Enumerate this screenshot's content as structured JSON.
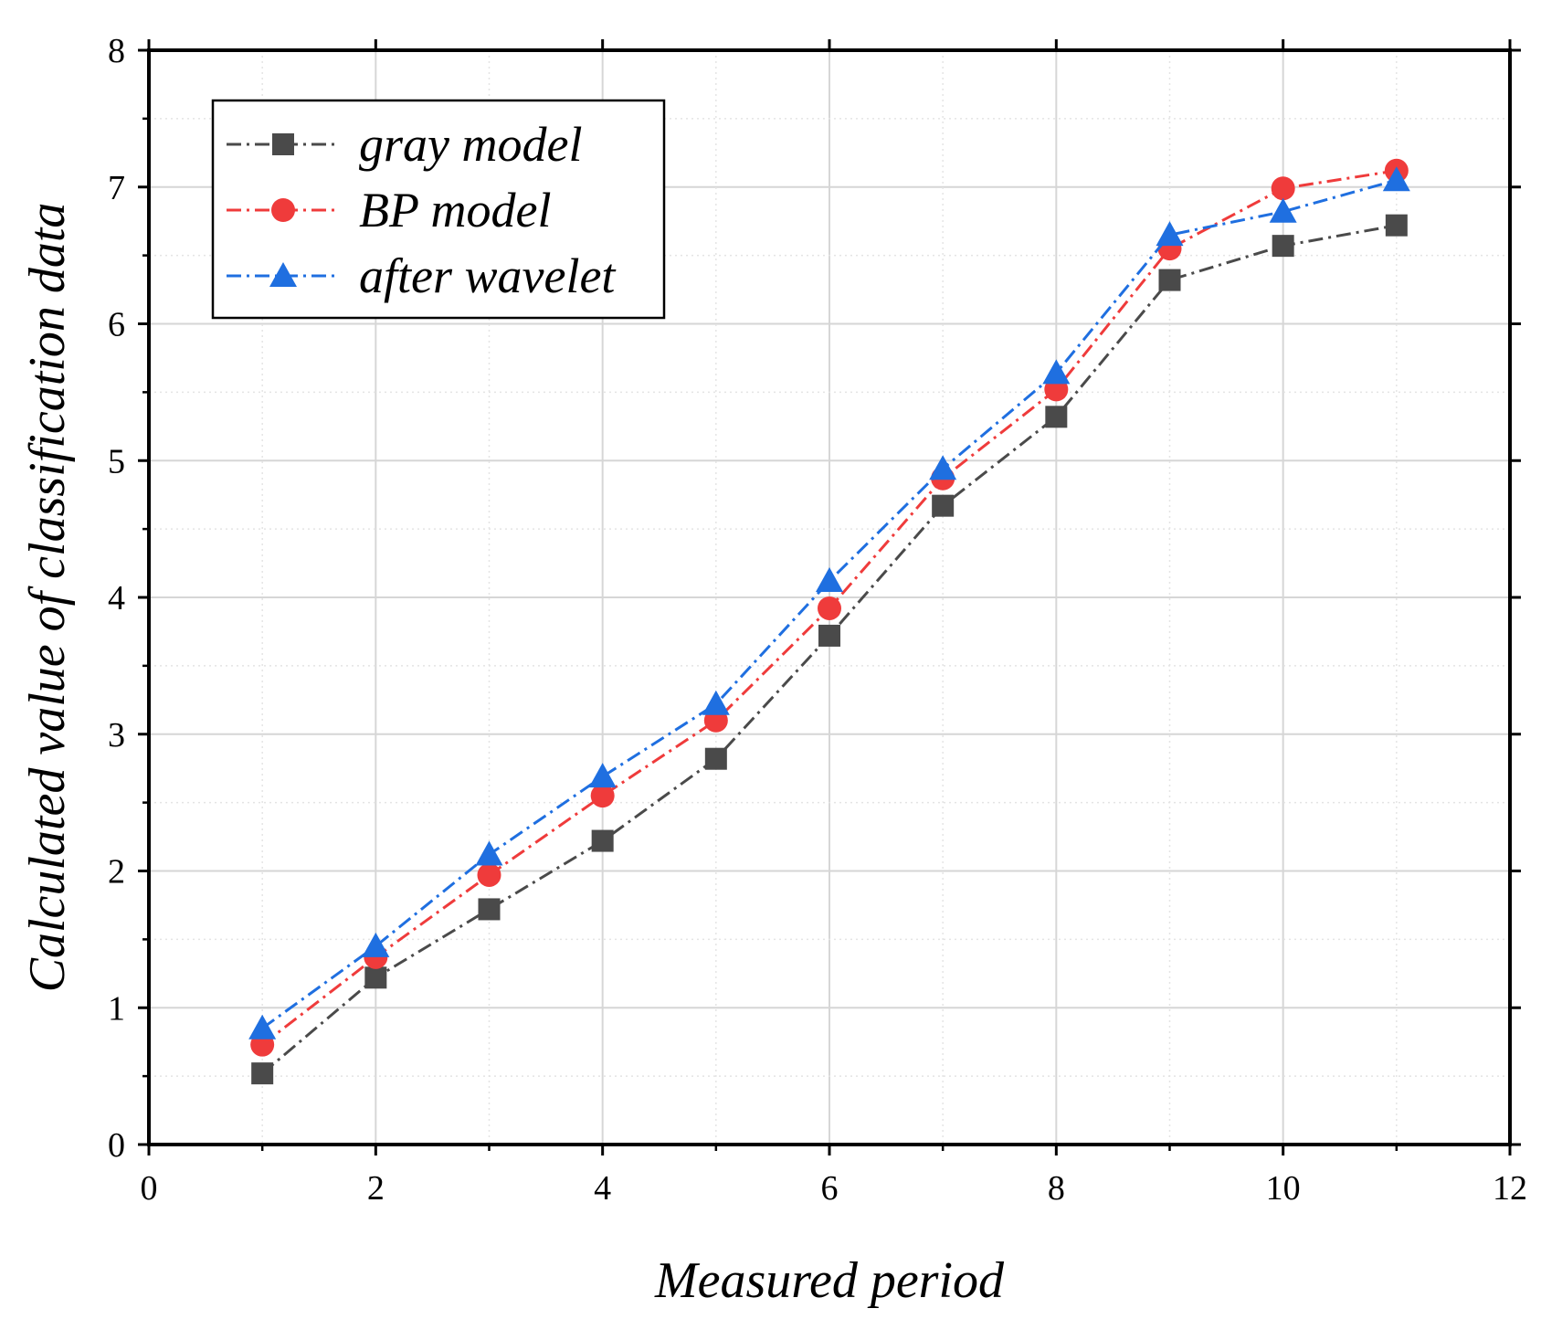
{
  "chart_data": {
    "type": "line",
    "title": "",
    "xlabel": "Measured period",
    "ylabel": "Calculated value of classification data",
    "xlim": [
      0,
      12
    ],
    "ylim": [
      0,
      8
    ],
    "xticks": [
      0,
      2,
      4,
      6,
      8,
      10,
      12
    ],
    "yticks": [
      0,
      1,
      2,
      3,
      4,
      5,
      6,
      7,
      8
    ],
    "grid": true,
    "legend_position": "top-left",
    "x": [
      1,
      2,
      3,
      4,
      5,
      6,
      7,
      8,
      9,
      10,
      11
    ],
    "series": [
      {
        "name": "gray model",
        "marker": "square",
        "color": "#4a4a4a",
        "values": [
          0.52,
          1.22,
          1.72,
          2.22,
          2.82,
          3.72,
          4.67,
          5.32,
          6.32,
          6.57,
          6.72
        ]
      },
      {
        "name": "BP model",
        "marker": "circle",
        "color": "#ef3b3b",
        "values": [
          0.73,
          1.37,
          1.97,
          2.55,
          3.1,
          3.92,
          4.87,
          5.52,
          6.55,
          6.99,
          7.12
        ]
      },
      {
        "name": "after wavelet",
        "marker": "triangle",
        "color": "#1f6fe0",
        "values": [
          0.85,
          1.45,
          2.12,
          2.69,
          3.22,
          4.12,
          4.94,
          5.64,
          6.65,
          6.82,
          7.05
        ]
      }
    ]
  }
}
